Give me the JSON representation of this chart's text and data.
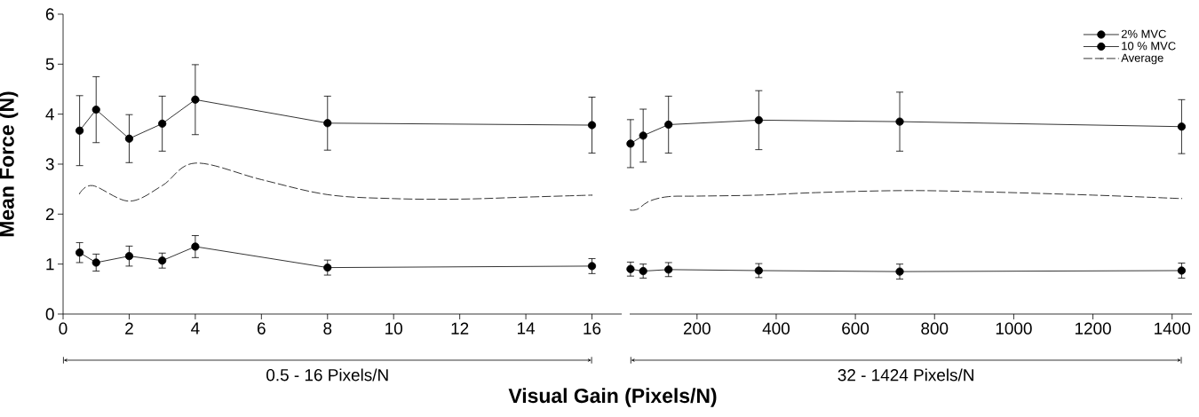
{
  "chart_data": [
    {
      "type": "line",
      "ylabel": "Mean Force (N)",
      "xlabel": "Visual Gain (Pixels/N)",
      "annotations": [
        "0.5 - 16 Pixels/N"
      ],
      "x": [
        0.5,
        1,
        2,
        3,
        4,
        8,
        16
      ],
      "xlim": [
        0,
        16.9
      ],
      "xticks": [
        0,
        2,
        4,
        6,
        8,
        10,
        12,
        14,
        16
      ],
      "ylim": [
        0,
        6
      ],
      "yticks": [
        0,
        1,
        2,
        3,
        4,
        5,
        6
      ],
      "legend": false,
      "series": [
        {
          "color": "#000000",
          "marker": "circle",
          "values": [
            1.23,
            1.03,
            1.16,
            1.07,
            1.35,
            0.93,
            0.96
          ],
          "errors": [
            0.2,
            0.17,
            0.2,
            0.15,
            0.22,
            0.15,
            0.15
          ]
        },
        {
          "color": "#000000",
          "marker": "circle",
          "values": [
            3.67,
            4.09,
            3.51,
            3.81,
            4.29,
            3.82,
            3.78
          ],
          "errors": [
            0.7,
            0.66,
            0.48,
            0.55,
            0.7,
            0.54,
            0.56
          ]
        },
        {
          "color": "#000000",
          "marker": "none",
          "line_style": "dashed",
          "x": [
            0.5,
            0.9,
            2,
            3,
            4,
            6,
            8,
            10,
            12,
            14,
            16
          ],
          "values": [
            2.41,
            2.57,
            2.26,
            2.57,
            3.02,
            2.69,
            2.39,
            2.31,
            2.3,
            2.34,
            2.38
          ]
        }
      ]
    },
    {
      "type": "line",
      "annotations": [
        "32 - 1424 Pixels/N"
      ],
      "tick_labels": "x",
      "x": [
        32,
        64,
        128,
        356,
        712,
        1424
      ],
      "xlim": [
        30,
        1450
      ],
      "xticks": [
        200,
        400,
        600,
        800,
        1000,
        1200,
        1400
      ],
      "ylim": [
        0,
        6
      ],
      "legend": "top right",
      "series": [
        {
          "name": "2% MVC",
          "color": "#000000",
          "marker": "circle",
          "values": [
            0.9,
            0.86,
            0.89,
            0.87,
            0.85,
            0.87
          ],
          "errors": [
            0.14,
            0.14,
            0.14,
            0.14,
            0.15,
            0.15
          ]
        },
        {
          "name": "10 % MVC",
          "color": "#000000",
          "marker": "circle",
          "values": [
            3.41,
            3.57,
            3.79,
            3.88,
            3.85,
            3.75
          ],
          "errors": [
            0.48,
            0.53,
            0.57,
            0.59,
            0.59,
            0.54
          ]
        },
        {
          "name": "Average",
          "color": "#000000",
          "marker": "none",
          "line_style": "dashed",
          "x": [
            32,
            50,
            80,
            128,
            200,
            356,
            500,
            712,
            900,
            1200,
            1424
          ],
          "values": [
            2.08,
            2.1,
            2.26,
            2.35,
            2.36,
            2.38,
            2.43,
            2.47,
            2.45,
            2.38,
            2.31
          ]
        }
      ]
    }
  ]
}
